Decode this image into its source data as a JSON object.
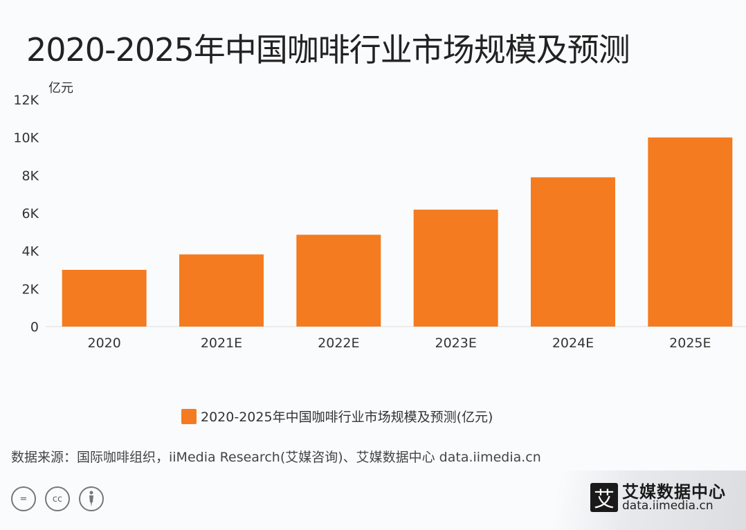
{
  "title": "2020-2025年中国咖啡行业市场规模及预测",
  "chart_data": {
    "type": "bar",
    "title": "2020-2025年中国咖啡行业市场规模及预测",
    "ylabel": "亿元",
    "categories": [
      "2020",
      "2021E",
      "2022E",
      "2023E",
      "2024E",
      "2025E"
    ],
    "series": [
      {
        "name": "2020-2025年中国咖啡行业市场规模及预测(亿元)",
        "values": [
          3000,
          3817,
          4856,
          6183,
          7893,
          10000
        ]
      }
    ],
    "ylim": [
      0,
      12000
    ],
    "yticks": [
      {
        "value": 0,
        "label": "0"
      },
      {
        "value": 2000,
        "label": "2K"
      },
      {
        "value": 4000,
        "label": "4K"
      },
      {
        "value": 6000,
        "label": "6K"
      },
      {
        "value": 8000,
        "label": "8K"
      },
      {
        "value": 10000,
        "label": "10K"
      },
      {
        "value": 12000,
        "label": "12K"
      }
    ],
    "grid": false,
    "legend": "bottom",
    "color": "#f47b20"
  },
  "source": "数据来源：国际咖啡组织，iiMedia Research(艾媒咨询)、艾媒数据中心 data.iimedia.cn",
  "license_icons": [
    "equals-icon",
    "cc-icon",
    "person-icon"
  ],
  "license_labels": {
    "nd": "=",
    "cc": "cc"
  },
  "logo": {
    "mark": "艾",
    "name": "艾媒数据中心",
    "url": "data.iimedia.cn"
  }
}
